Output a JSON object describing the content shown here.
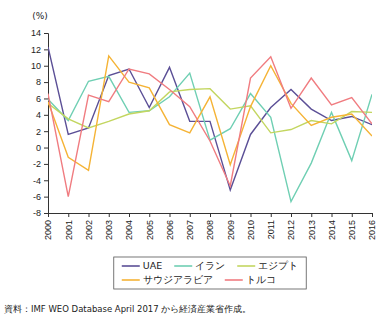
{
  "chart_data": {
    "type": "line",
    "y_label": "(%)",
    "source": "資料：IMF WEO Database April 2017 から経済産業省作成。",
    "x": [
      2000,
      2001,
      2002,
      2003,
      2004,
      2005,
      2006,
      2007,
      2008,
      2009,
      2010,
      2011,
      2012,
      2013,
      2014,
      2015,
      2016
    ],
    "xlim": [
      2000,
      2016
    ],
    "xticks": [
      2000,
      2001,
      2002,
      2003,
      2004,
      2005,
      2006,
      2007,
      2008,
      2009,
      2010,
      2011,
      2012,
      2013,
      2014,
      2015,
      2016
    ],
    "ylim": [
      -8,
      14
    ],
    "yticks": [
      -8,
      -6,
      -4,
      -2,
      0,
      2,
      4,
      6,
      8,
      10,
      12,
      14
    ],
    "grid": false,
    "legend": "bottom",
    "series": [
      {
        "name": "UAE",
        "color": "#5b4f96",
        "values": [
          12.3,
          1.6,
          2.4,
          8.8,
          9.6,
          4.9,
          9.8,
          3.2,
          3.2,
          -5.2,
          1.6,
          4.9,
          7.1,
          4.7,
          3.3,
          3.8,
          2.8
        ]
      },
      {
        "name": "イラン",
        "color": "#6fcfb3",
        "values": [
          5.9,
          3.3,
          8.1,
          8.7,
          4.3,
          4.5,
          6.2,
          9.1,
          0.9,
          2.3,
          6.6,
          3.7,
          -6.6,
          -1.9,
          4.3,
          -1.6,
          6.5
        ]
      },
      {
        "name": "エジプト",
        "color": "#c3d660",
        "values": [
          5.4,
          3.5,
          2.4,
          3.2,
          4.1,
          4.5,
          6.8,
          7.1,
          7.2,
          4.7,
          5.1,
          1.8,
          2.2,
          3.3,
          2.9,
          4.4,
          4.3
        ]
      },
      {
        "name": "サウジアラビア",
        "color": "#f5b335",
        "values": [
          5.6,
          -1.2,
          -2.8,
          11.2,
          8.0,
          7.3,
          2.8,
          1.8,
          6.2,
          -2.1,
          5.0,
          10.0,
          5.4,
          2.7,
          3.7,
          4.1,
          1.4
        ]
      },
      {
        "name": "トルコ",
        "color": "#f07c80",
        "values": [
          6.6,
          -6.0,
          6.4,
          5.6,
          9.6,
          9.0,
          7.1,
          5.0,
          0.8,
          -4.7,
          8.5,
          11.1,
          4.8,
          8.5,
          5.2,
          6.1,
          2.9
        ]
      }
    ]
  }
}
